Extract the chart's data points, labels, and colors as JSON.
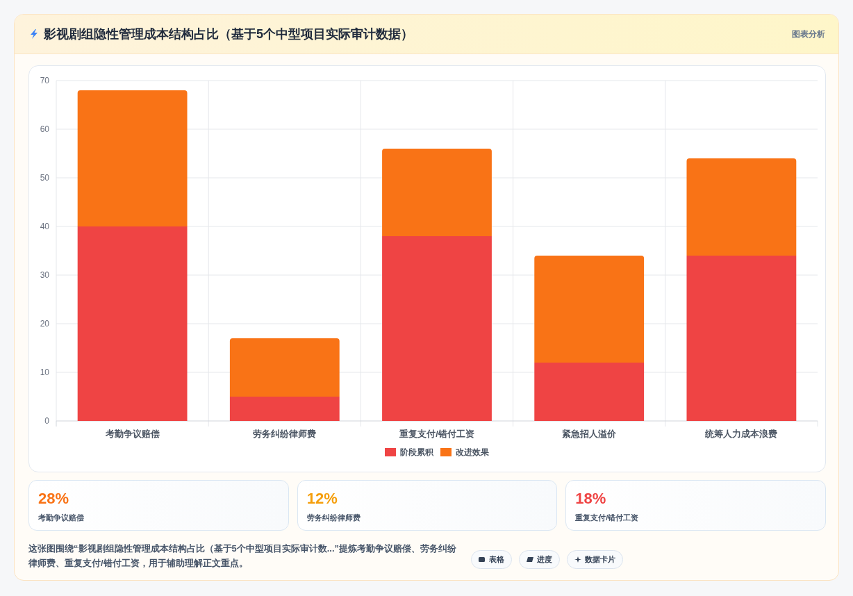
{
  "chart_data": [
    {
      "type": "bar",
      "title": "影视剧组隐性管理成本结构占比（基于5个中型项目实际审计数据）",
      "categories": [
        "考勤争议赔偿",
        "劳务纠纷律师费",
        "重复支付/错付工资",
        "紧急招人溢价",
        "统筹人力成本浪费"
      ],
      "series": [
        {
          "name": "阶段累积",
          "color": "#ef4444",
          "values": [
            40,
            5,
            38,
            12,
            34
          ]
        },
        {
          "name": "改进效果",
          "color": "#f97316",
          "values": [
            28,
            12,
            18,
            22,
            20
          ]
        }
      ],
      "stacked": true,
      "ylim": [
        0,
        70
      ],
      "yticks": [
        0,
        10,
        20,
        30,
        40,
        50,
        60,
        70
      ],
      "grid": true,
      "legend": "bottom",
      "annotations": [
        "图表分析",
        "这张图围绕“影视剧组隐性管理成本结构占比（基于5个中型项目实际审计数...”提炼考勤争议赔偿、劳务纠纷律师费、重复支付/错付工资，用于辅助理解正文重点。",
        "表格",
        "进度",
        "数据卡片"
      ]
    },
    {
      "type": "other",
      "annotations": [
        "28%",
        "考勤争议赔偿",
        "12%",
        "劳务纠纷律师费",
        "18%",
        "重复支付/错付工资"
      ]
    }
  ]
}
